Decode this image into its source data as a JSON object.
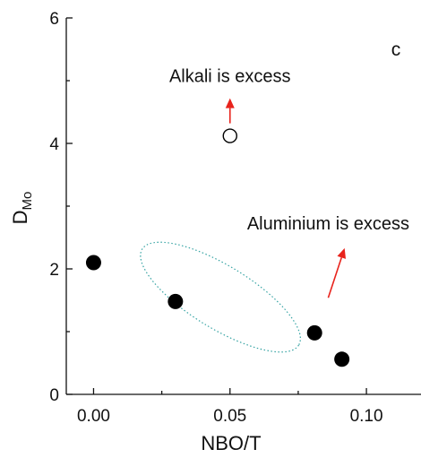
{
  "chart_data": {
    "type": "scatter",
    "panel_label": "c",
    "xlabel": "NBO/T",
    "ylabel_main": "D",
    "ylabel_sub": "Mo",
    "xlim": [
      -0.01,
      0.12
    ],
    "ylim": [
      0,
      6
    ],
    "x_ticks": [
      0.0,
      0.05,
      0.1
    ],
    "x_tick_labels": [
      "0.00",
      "0.05",
      "0.10"
    ],
    "y_ticks": [
      0,
      2,
      4,
      6
    ],
    "y_tick_labels": [
      "0",
      "2",
      "4",
      "6"
    ],
    "series": [
      {
        "marker": "filled-circle",
        "color": "#000000",
        "points": [
          {
            "x": 0.0,
            "y": 2.1
          },
          {
            "x": 0.03,
            "y": 1.48
          },
          {
            "x": 0.081,
            "y": 0.98
          },
          {
            "x": 0.091,
            "y": 0.56
          }
        ]
      },
      {
        "marker": "open-circle",
        "color": "#000000",
        "points": [
          {
            "x": 0.05,
            "y": 4.12
          }
        ]
      }
    ],
    "annotations": [
      {
        "text": "Alkali is excess",
        "x": 0.05,
        "y": 4.98
      },
      {
        "text": "Aluminium is excess",
        "x": 0.086,
        "y": 2.63
      }
    ],
    "arrows": [
      {
        "from": [
          0.05,
          4.32
        ],
        "to": [
          0.05,
          4.72
        ],
        "color": "#e8231c"
      },
      {
        "from": [
          0.086,
          1.54
        ],
        "to": [
          0.092,
          2.33
        ],
        "color": "#e8231c"
      }
    ],
    "ellipse": {
      "cx": 0.0465,
      "cy": 1.55,
      "rx": 0.058,
      "ry": 0.86,
      "angle_deg": -31.5,
      "color": "#35a3a3"
    },
    "grid": false
  }
}
